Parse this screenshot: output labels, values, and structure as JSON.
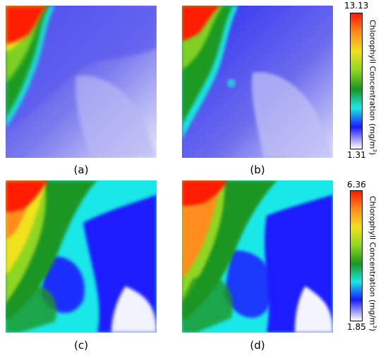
{
  "panels": [
    {
      "label": "(a)"
    },
    {
      "label": "(b)"
    },
    {
      "label": "(c)"
    },
    {
      "label": "(d)"
    }
  ],
  "colorbars": [
    {
      "max": "13.13",
      "min": "1.31",
      "title_prefix": "Chlorophyll Concentration (mg/m",
      "title_exp": "3",
      "title_suffix": ")"
    },
    {
      "max": "6.36",
      "min": "1.85",
      "title_prefix": "Chlorophyll Concentration (mg/m",
      "title_exp": "3",
      "title_suffix": ")"
    }
  ],
  "colormap": [
    "#ff1a00",
    "#ff8c1a",
    "#f0e21a",
    "#8fd620",
    "#1a9620",
    "#1ae8e8",
    "#1a1aff",
    "#ffffff"
  ]
}
